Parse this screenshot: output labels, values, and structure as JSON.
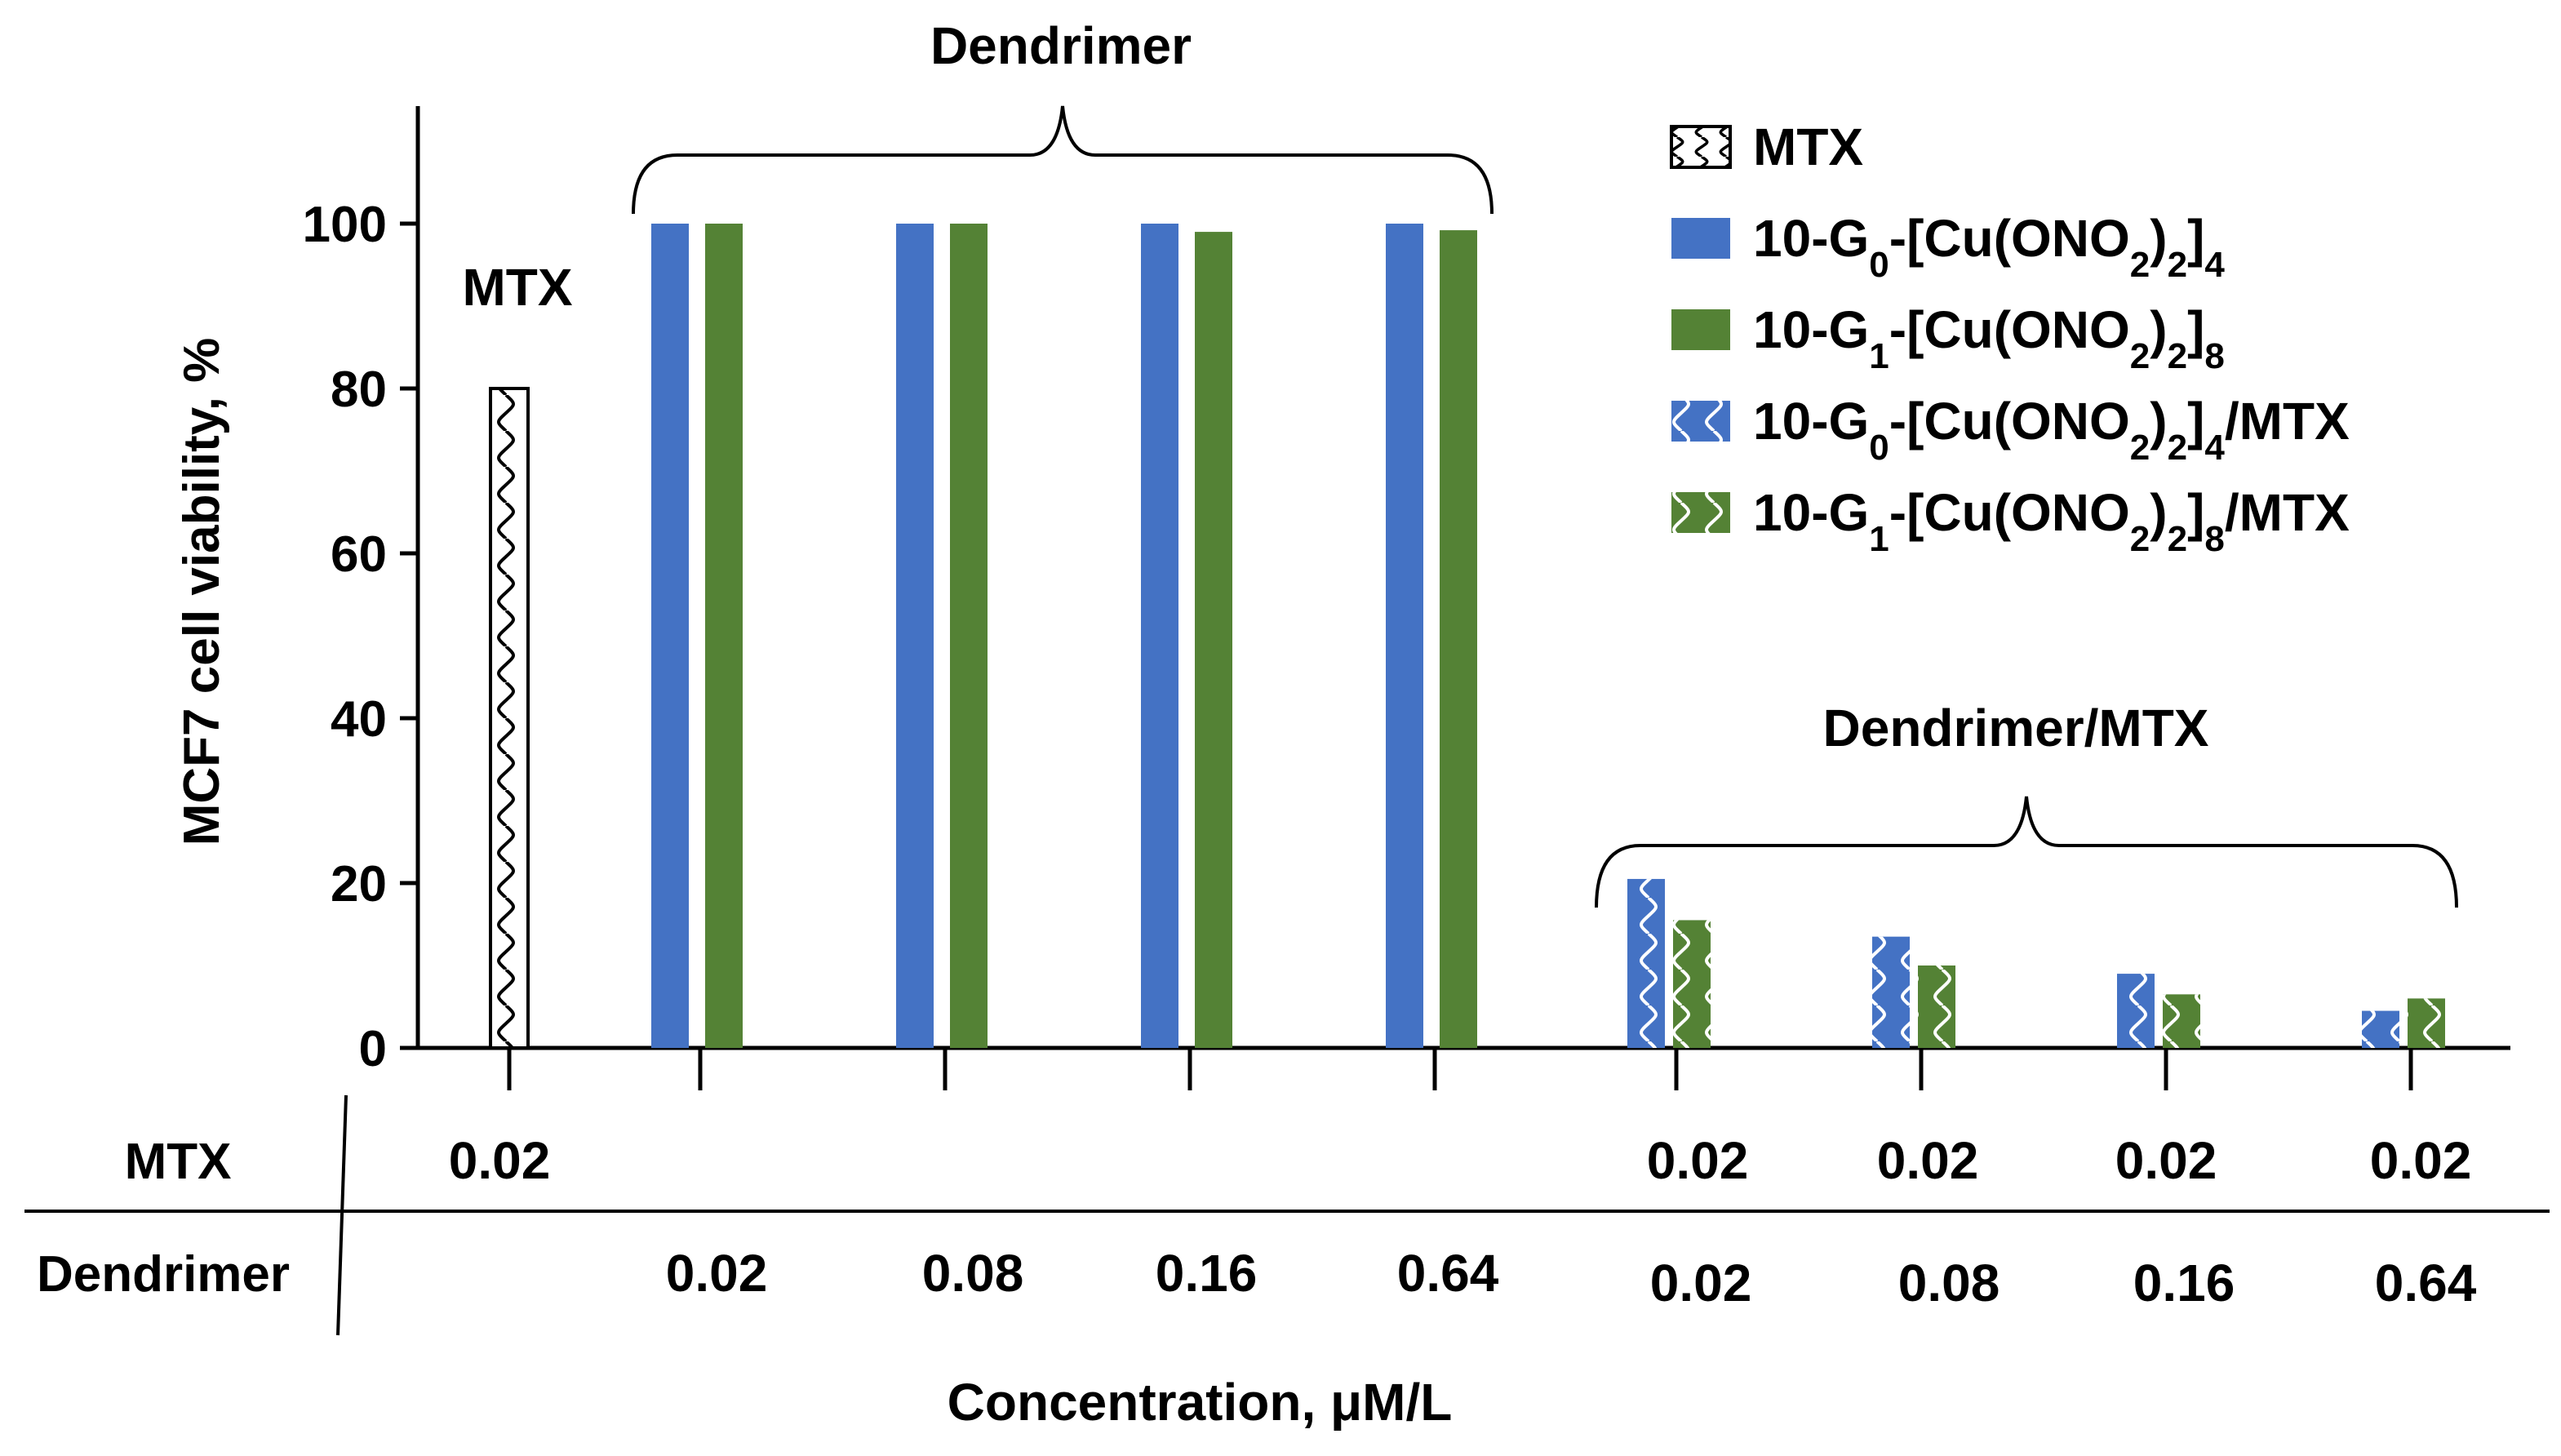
{
  "chart_data": {
    "type": "bar",
    "ylabel": "MCF7 cell viability, %",
    "xlabel": "Concentration, μM/L",
    "ylim": [
      0,
      115
    ],
    "yticks": [
      0,
      20,
      40,
      60,
      80,
      100
    ],
    "legend": [
      {
        "name": "MTX",
        "style": "hatch-white"
      },
      {
        "name": "10-G₀-[Cu(ONO₂)₂]₄",
        "style": "solid-blue"
      },
      {
        "name": "10-G₁-[Cu(ONO₂)₂]₈",
        "style": "solid-green"
      },
      {
        "name": "10-G₀-[Cu(ONO₂)₂]₄/MTX",
        "style": "hatch-blue"
      },
      {
        "name": "10-G₁-[Cu(ONO₂)₂]₈/MTX",
        "style": "hatch-green"
      }
    ],
    "legend_position": "top-right",
    "group_labels": {
      "mtx": "MTX",
      "dendrimer": "Dendrimer",
      "dendrimer_mtx": "Dendrimer/MTX"
    },
    "series": [
      {
        "name": "MTX",
        "values": [
          80
        ]
      },
      {
        "name": "10-G₀-[Cu(ONO₂)₂]₄",
        "values": [
          100,
          100,
          100,
          100
        ]
      },
      {
        "name": "10-G₁-[Cu(ONO₂)₂]₈",
        "values": [
          100,
          100,
          99,
          99.2
        ]
      },
      {
        "name": "10-G₀-[Cu(ONO₂)₂]₄/MTX",
        "values": [
          20.5,
          13.5,
          9,
          4.5
        ]
      },
      {
        "name": "10-G₁-[Cu(ONO₂)₂]₈/MTX",
        "values": [
          15.5,
          10,
          6.5,
          6
        ]
      }
    ],
    "table": {
      "row_labels": [
        "MTX",
        "Dendrimer"
      ],
      "mtx_row": [
        "0.02",
        "",
        "",
        "",
        "",
        "0.02",
        "0.02",
        "0.02",
        "0.02"
      ],
      "dendrimer_row": [
        "",
        "0.02",
        "0.08",
        "0.16",
        "0.64",
        "0.02",
        "0.08",
        "0.16",
        "0.64"
      ]
    }
  },
  "colors": {
    "blue": "#4472c4",
    "green": "#548235",
    "outline": "#000000",
    "white": "#ffffff"
  }
}
